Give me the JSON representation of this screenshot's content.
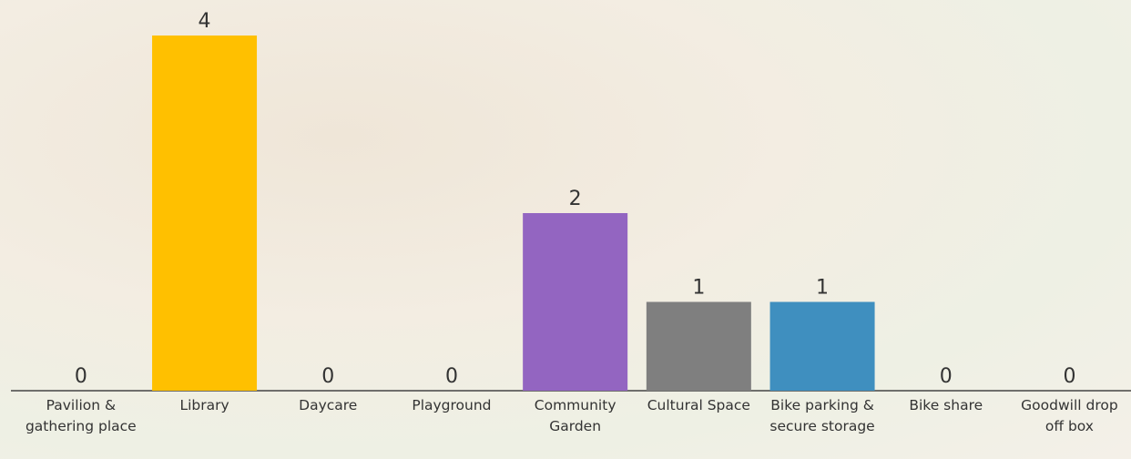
{
  "chart_data": {
    "type": "bar",
    "categories": [
      "Pavilion & gathering place",
      "Library",
      "Daycare",
      "Playground",
      "Community Garden",
      "Cultural Space",
      "Bike parking & secure storage",
      "Bike share",
      "Goodwill drop off box"
    ],
    "values": [
      0,
      4,
      0,
      0,
      2,
      1,
      1,
      0,
      0
    ],
    "colors": [
      null,
      "#ffc000",
      null,
      null,
      "#9365c1",
      "#7f7f7f",
      "#3f8fbf",
      null,
      null
    ]
  }
}
